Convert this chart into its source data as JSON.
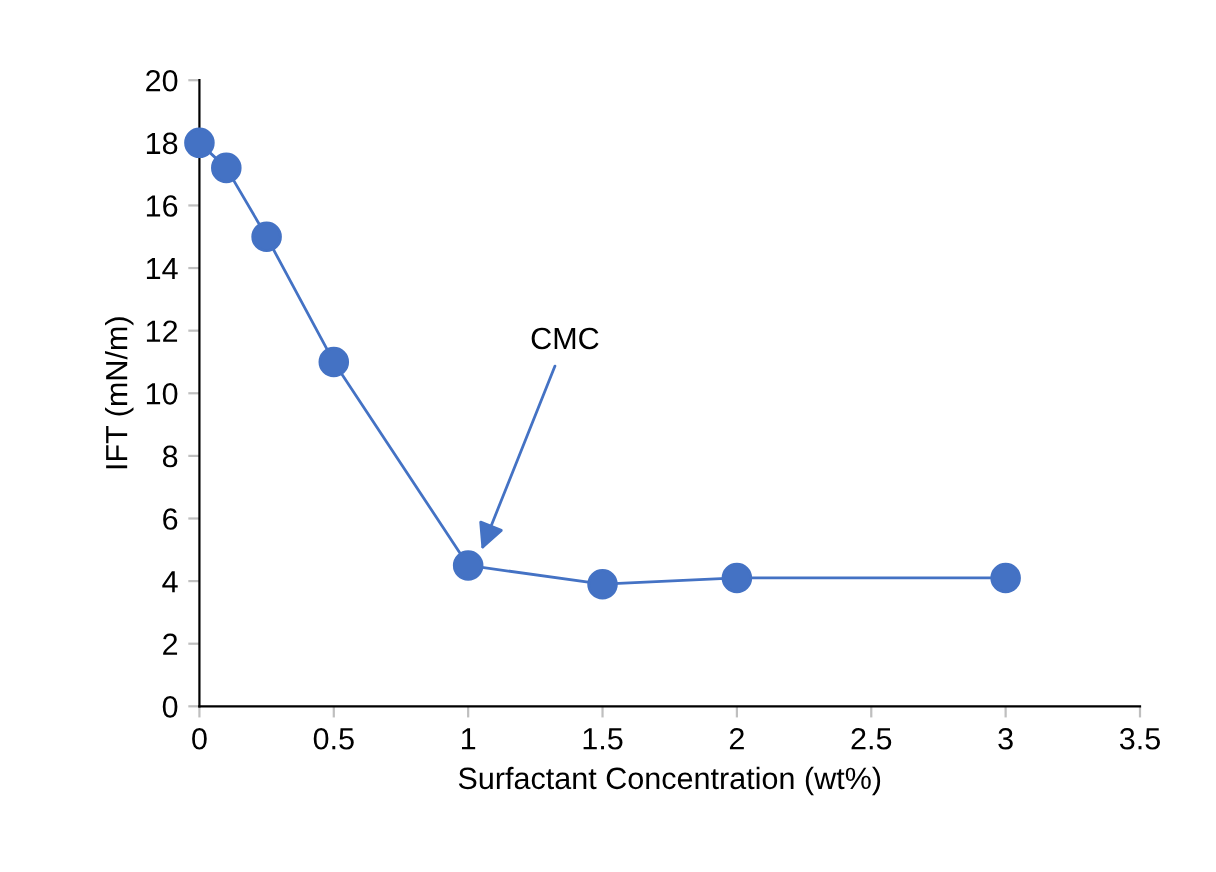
{
  "chart_data": {
    "type": "line",
    "xlabel": "Surfactant Concentration (wt%)",
    "ylabel": "IFT (mN/m)",
    "x": [
      0,
      0.1,
      0.25,
      0.5,
      1,
      1.5,
      2,
      3
    ],
    "series": [
      {
        "color": "#4472c4",
        "values": [
          18,
          17.2,
          15,
          11,
          4.5,
          3.9,
          4.1,
          4.1
        ]
      }
    ],
    "xlim": [
      0,
      3.5
    ],
    "xticks": [
      0,
      0.5,
      1,
      1.5,
      2,
      2.5,
      3,
      3.5
    ],
    "ylim": [
      0,
      20
    ],
    "yticks": [
      0,
      2,
      4,
      6,
      8,
      10,
      12,
      14,
      16,
      18,
      20
    ],
    "grid": false,
    "legend": false,
    "marker": "circle",
    "line_style": "solid",
    "annotations": [
      {
        "text": "CMC",
        "x": 1.05,
        "y": 5
      }
    ]
  }
}
